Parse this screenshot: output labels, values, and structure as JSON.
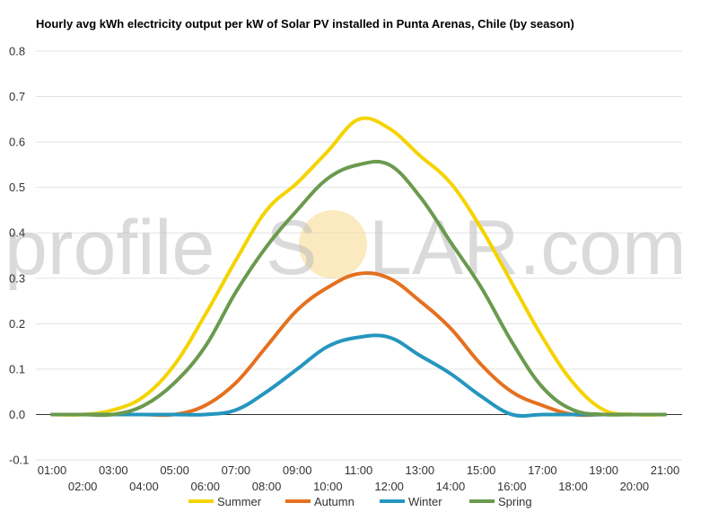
{
  "chart_data": {
    "type": "line",
    "title": "Hourly avg kWh electricity output per kW of Solar PV installed in Punta Arenas, Chile (by season)",
    "xlabel": "",
    "ylabel": "",
    "ylim": [
      -0.1,
      0.8
    ],
    "yticks": [
      "-0.1",
      "0.0",
      "0.1",
      "0.2",
      "0.3",
      "0.4",
      "0.5",
      "0.6",
      "0.7",
      "0.8"
    ],
    "grid": true,
    "legend_position": "bottom",
    "categories": [
      "01:00",
      "02:00",
      "03:00",
      "04:00",
      "05:00",
      "06:00",
      "07:00",
      "08:00",
      "09:00",
      "10:00",
      "11:00",
      "12:00",
      "13:00",
      "14:00",
      "15:00",
      "16:00",
      "17:00",
      "18:00",
      "19:00",
      "20:00",
      "21:00"
    ],
    "series": [
      {
        "name": "Summer",
        "color": "#f5d300",
        "values": [
          0,
          0,
          0.01,
          0.04,
          0.11,
          0.22,
          0.34,
          0.45,
          0.51,
          0.58,
          0.65,
          0.63,
          0.57,
          0.51,
          0.41,
          0.29,
          0.17,
          0.07,
          0.01,
          0,
          0
        ]
      },
      {
        "name": "Autumn",
        "color": "#e4711f",
        "values": [
          0,
          0,
          0,
          0,
          0,
          0.02,
          0.07,
          0.15,
          0.23,
          0.28,
          0.31,
          0.3,
          0.25,
          0.19,
          0.11,
          0.05,
          0.02,
          0,
          0,
          0,
          0
        ]
      },
      {
        "name": "Winter",
        "color": "#2596be",
        "values": [
          0,
          0,
          0,
          0,
          0,
          0,
          0.01,
          0.05,
          0.1,
          0.15,
          0.17,
          0.17,
          0.13,
          0.09,
          0.04,
          0,
          0,
          0,
          0,
          0,
          0
        ]
      },
      {
        "name": "Spring",
        "color": "#6a9a4e",
        "values": [
          0,
          0,
          0,
          0.02,
          0.07,
          0.15,
          0.27,
          0.37,
          0.45,
          0.52,
          0.55,
          0.55,
          0.48,
          0.38,
          0.28,
          0.16,
          0.06,
          0.01,
          0,
          0,
          0
        ]
      }
    ]
  },
  "watermark": {
    "left": "profile",
    "s": "S",
    "right": "LAR.com",
    "sun_color": "#f7d88a"
  }
}
